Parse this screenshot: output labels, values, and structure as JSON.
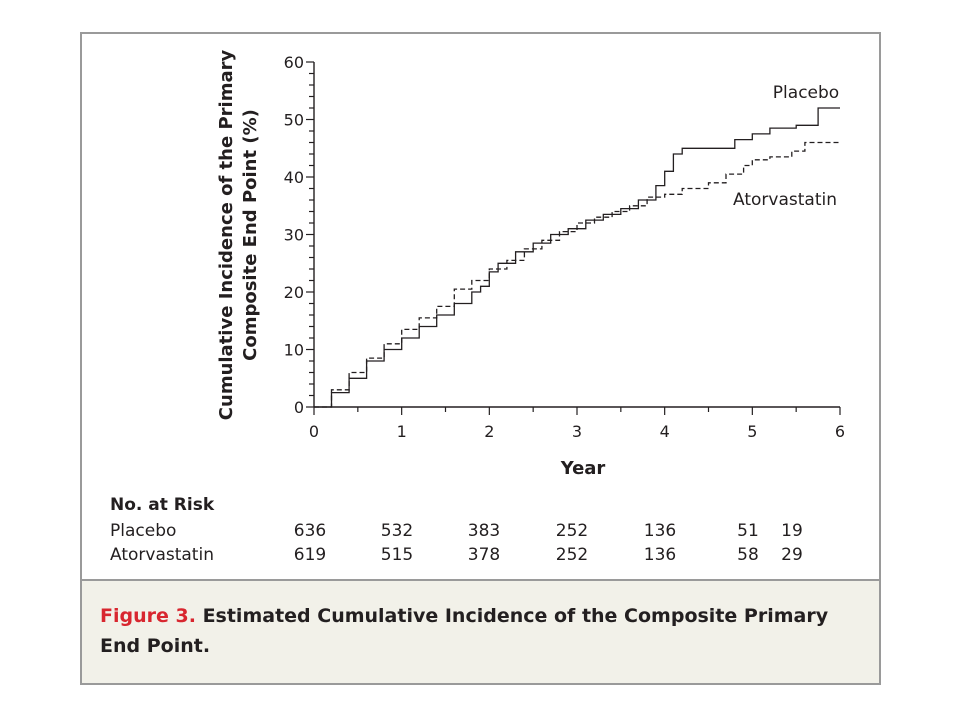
{
  "chart_data": {
    "type": "line",
    "xlabel": "Year",
    "ylabel": "Cumulative Incidence of the Primary Composite End Point (%)",
    "ylabel_lines": [
      "Cumulative Incidence of the Primary",
      "Composite End Point (%)"
    ],
    "xlim": [
      0,
      6
    ],
    "ylim": [
      0,
      60
    ],
    "x_ticks": [
      0,
      1,
      2,
      3,
      4,
      5,
      6
    ],
    "y_ticks": [
      0,
      10,
      20,
      30,
      40,
      50,
      60
    ],
    "grid": false,
    "series": [
      {
        "name": "Placebo",
        "line_style": "solid",
        "color": "#231f20",
        "points": [
          [
            0,
            0
          ],
          [
            0.2,
            2.5
          ],
          [
            0.4,
            5
          ],
          [
            0.6,
            8
          ],
          [
            0.8,
            10
          ],
          [
            1.0,
            12
          ],
          [
            1.2,
            14
          ],
          [
            1.4,
            16
          ],
          [
            1.6,
            18
          ],
          [
            1.8,
            20
          ],
          [
            1.9,
            21
          ],
          [
            2.0,
            23.5
          ],
          [
            2.1,
            25
          ],
          [
            2.3,
            27
          ],
          [
            2.5,
            28.5
          ],
          [
            2.7,
            30
          ],
          [
            2.9,
            31
          ],
          [
            3.1,
            32.5
          ],
          [
            3.3,
            33.5
          ],
          [
            3.5,
            34.5
          ],
          [
            3.7,
            36
          ],
          [
            3.9,
            38.5
          ],
          [
            4.0,
            41
          ],
          [
            4.1,
            44
          ],
          [
            4.2,
            45
          ],
          [
            4.5,
            45
          ],
          [
            4.8,
            46.5
          ],
          [
            5.0,
            47.5
          ],
          [
            5.2,
            48.5
          ],
          [
            5.5,
            49
          ],
          [
            5.75,
            49
          ],
          [
            5.75,
            52
          ],
          [
            6.0,
            52
          ]
        ]
      },
      {
        "name": "Atorvastatin",
        "line_style": "dashed",
        "color": "#231f20",
        "points": [
          [
            0,
            0
          ],
          [
            0.2,
            3
          ],
          [
            0.4,
            6
          ],
          [
            0.6,
            8.5
          ],
          [
            0.8,
            11
          ],
          [
            1.0,
            13.5
          ],
          [
            1.2,
            15.5
          ],
          [
            1.4,
            17.5
          ],
          [
            1.6,
            20.5
          ],
          [
            1.8,
            22
          ],
          [
            2.0,
            24
          ],
          [
            2.2,
            25.5
          ],
          [
            2.4,
            27.5
          ],
          [
            2.6,
            29
          ],
          [
            2.8,
            30.5
          ],
          [
            3.0,
            32
          ],
          [
            3.2,
            33
          ],
          [
            3.4,
            34
          ],
          [
            3.6,
            35
          ],
          [
            3.8,
            36.5
          ],
          [
            4.0,
            37
          ],
          [
            4.2,
            38
          ],
          [
            4.5,
            39
          ],
          [
            4.7,
            40.5
          ],
          [
            4.9,
            42
          ],
          [
            5.0,
            43
          ],
          [
            5.2,
            43.5
          ],
          [
            5.45,
            44.5
          ],
          [
            5.6,
            46
          ],
          [
            6.0,
            46
          ]
        ]
      }
    ],
    "series_labels": {
      "Placebo": "Placebo",
      "Atorvastatin": "Atorvastatin"
    }
  },
  "risk_table": {
    "title": "No. at Risk",
    "rows": [
      {
        "label": "Placebo",
        "values": [
          "636",
          "532",
          "383",
          "252",
          "136",
          "51",
          "19"
        ]
      },
      {
        "label": "Atorvastatin",
        "values": [
          "619",
          "515",
          "378",
          "252",
          "136",
          "58",
          "29"
        ]
      }
    ]
  },
  "caption": {
    "label": "Figure 3.",
    "text": "Estimated Cumulative Incidence of the Composite Primary End Point."
  },
  "colors": {
    "frame_border": "#9a9a9a",
    "caption_background": "#f2f1e9",
    "figure_label": "#d8262f",
    "ink": "#231f20"
  }
}
